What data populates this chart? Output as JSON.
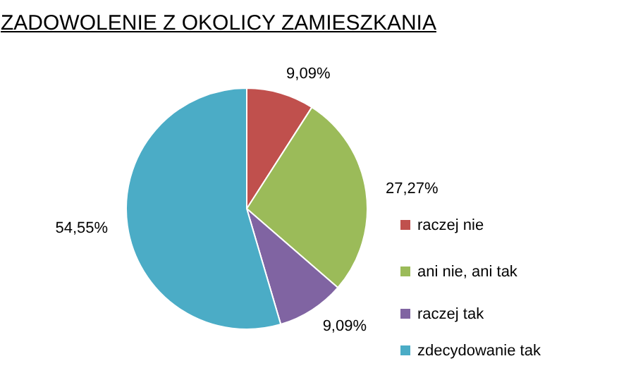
{
  "chart_data": {
    "type": "pie",
    "title": "ZADOWOLENIE Z OKOLICY ZAMIESZKANIA",
    "categories": [
      "raczej nie",
      "ani nie, ani tak",
      "raczej tak",
      "zdecydowanie tak"
    ],
    "values": [
      9.09,
      27.27,
      9.09,
      54.55
    ],
    "colors": [
      "#c0504d",
      "#9bbb59",
      "#8064a2",
      "#4bacc6"
    ],
    "value_labels": [
      "9,09%",
      "27,27%",
      "9,09%",
      "54,55%"
    ],
    "legend": "right"
  }
}
